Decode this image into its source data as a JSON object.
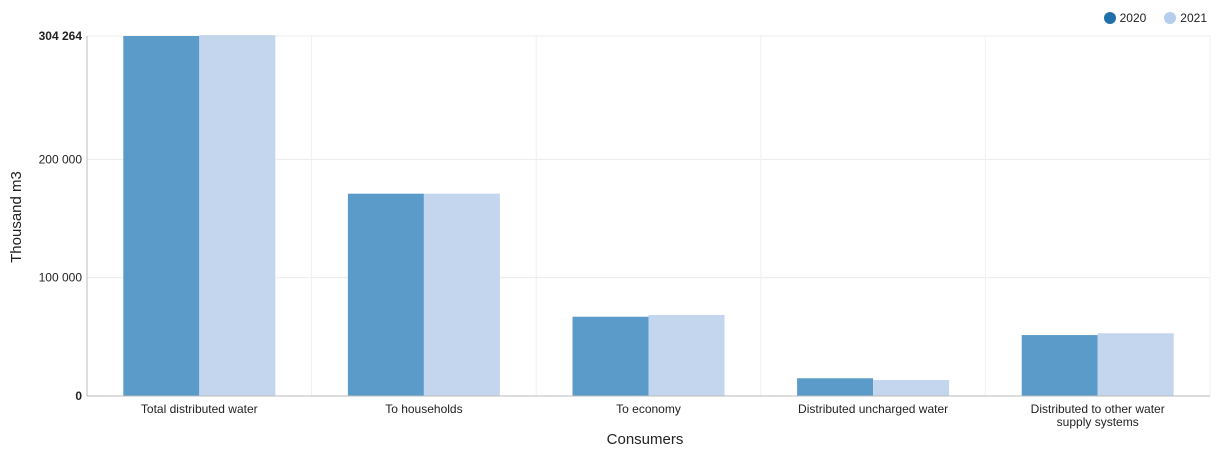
{
  "chart_data": {
    "type": "bar",
    "xlabel": "Consumers",
    "ylabel": "Thousand m3",
    "categories": [
      "Total distributed water",
      "To households",
      "To economy",
      "Distributed uncharged water",
      "Distributed to other water supply systems"
    ],
    "series": [
      {
        "name": "2020",
        "color": "#5a9bc9",
        "values": [
          304264,
          171000,
          67000,
          15000,
          51500
        ]
      },
      {
        "name": "2021",
        "color": "#c4d5ee",
        "values": [
          305000,
          171000,
          68500,
          13500,
          53000
        ]
      }
    ],
    "yticks": [
      {
        "value": 0,
        "label": "0",
        "bold": true
      },
      {
        "value": 100000,
        "label": "100 000",
        "bold": false
      },
      {
        "value": 200000,
        "label": "200 000",
        "bold": false
      },
      {
        "value": 304264,
        "label": "304 264",
        "bold": true
      }
    ],
    "ylim": [
      0,
      304264
    ],
    "grid": true,
    "legend_position": "top-right"
  },
  "legend": {
    "items": [
      {
        "label": "2020",
        "color": "#1f6fab"
      },
      {
        "label": "2021",
        "color": "#b6cdeb"
      }
    ]
  }
}
